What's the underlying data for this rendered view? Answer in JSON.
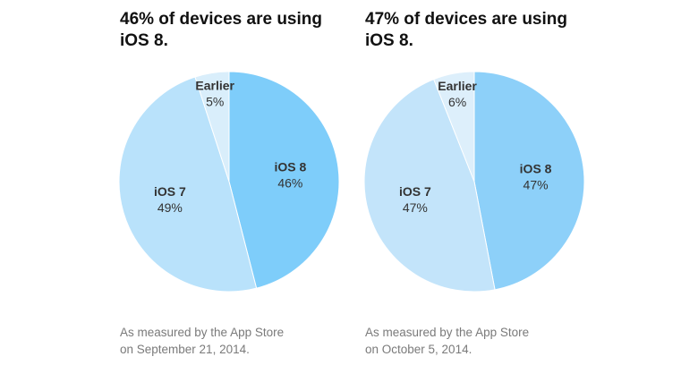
{
  "chart_data": [
    {
      "type": "pie",
      "title": [
        "46% of devices are using",
        "iOS 8."
      ],
      "slices": [
        {
          "name": "iOS 8",
          "value": 46,
          "label": "46%",
          "color": "#7ecdfa"
        },
        {
          "name": "iOS 7",
          "value": 49,
          "label": "49%",
          "color": "#b9e2fb"
        },
        {
          "name": "Earlier",
          "value": 5,
          "label": "5%",
          "color": "#d9eefb"
        }
      ],
      "caption": [
        "As measured by the App Store",
        "on September 21, 2014."
      ]
    },
    {
      "type": "pie",
      "title": [
        "47% of devices are using",
        "iOS 8."
      ],
      "slices": [
        {
          "name": "iOS 8",
          "value": 47,
          "label": "47%",
          "color": "#8dd0f9"
        },
        {
          "name": "iOS 7",
          "value": 47,
          "label": "47%",
          "color": "#c3e4fa"
        },
        {
          "name": "Earlier",
          "value": 6,
          "label": "6%",
          "color": "#ddeffb"
        }
      ],
      "caption": [
        "As measured by the App Store",
        "on October 5, 2014."
      ]
    }
  ]
}
